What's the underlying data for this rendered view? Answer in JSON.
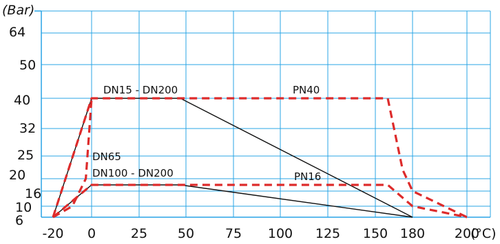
{
  "chart_data": {
    "type": "line",
    "y_unit": "(Bar)",
    "x_unit": "(°C)",
    "x_ticks": [
      {
        "value": -20,
        "label": "-20"
      },
      {
        "value": 0,
        "label": "0"
      },
      {
        "value": 25,
        "label": "25"
      },
      {
        "value": 50,
        "label": "50"
      },
      {
        "value": 75,
        "label": "75"
      },
      {
        "value": 100,
        "label": "100"
      },
      {
        "value": 125,
        "label": "125"
      },
      {
        "value": 150,
        "label": "150"
      },
      {
        "value": 180,
        "label": "180"
      },
      {
        "value": 200,
        "label": "200"
      }
    ],
    "y_ticks": [
      {
        "value": 6,
        "label": "6"
      },
      {
        "value": 10,
        "label": "10"
      },
      {
        "value": 16,
        "label": "16"
      },
      {
        "value": 20,
        "label": "20"
      },
      {
        "value": 25,
        "label": "25"
      },
      {
        "value": 32,
        "label": "32"
      },
      {
        "value": 40,
        "label": "40"
      },
      {
        "value": 50,
        "label": "50"
      },
      {
        "value": 64,
        "label": "64"
      }
    ],
    "grid": true,
    "series": [
      {
        "name": "DN15 - DN200",
        "style": "solid",
        "color": "#111111",
        "points": [
          [
            -20,
            6
          ],
          [
            0,
            40
          ],
          [
            47,
            40
          ],
          [
            180,
            6
          ]
        ]
      },
      {
        "name": "DN100 - DN200",
        "style": "solid",
        "color": "#111111",
        "points": [
          [
            -20,
            6
          ],
          [
            0,
            18
          ],
          [
            47,
            18
          ],
          [
            180,
            6
          ]
        ]
      },
      {
        "name": "PN40",
        "style": "dashed",
        "color": "#dd2b2b",
        "points": [
          [
            -20,
            6
          ],
          [
            0,
            40
          ],
          [
            160,
            40
          ],
          [
            172,
            22
          ],
          [
            180,
            16
          ],
          [
            200,
            6
          ]
        ]
      },
      {
        "name": "PN16",
        "style": "dashed",
        "color": "#dd2b2b",
        "points": [
          [
            -20,
            6
          ],
          [
            0,
            18
          ],
          [
            160,
            18
          ],
          [
            180,
            10
          ],
          [
            200,
            6
          ]
        ]
      },
      {
        "name": "DN65",
        "style": "dashed",
        "color": "#dd2b2b",
        "points": [
          [
            -20,
            6
          ],
          [
            -10,
            10
          ],
          [
            -3,
            20
          ],
          [
            0,
            40
          ]
        ]
      }
    ],
    "annotations": [
      {
        "text": "DN15 - DN200",
        "x": 0,
        "y": 40
      },
      {
        "text": "PN40",
        "x": 105,
        "y": 40
      },
      {
        "text": "DN65",
        "x": 0,
        "y": 22
      },
      {
        "text": "DN100 - DN200",
        "x": 0,
        "y": 18
      },
      {
        "text": "PN16",
        "x": 108,
        "y": 18
      }
    ]
  }
}
